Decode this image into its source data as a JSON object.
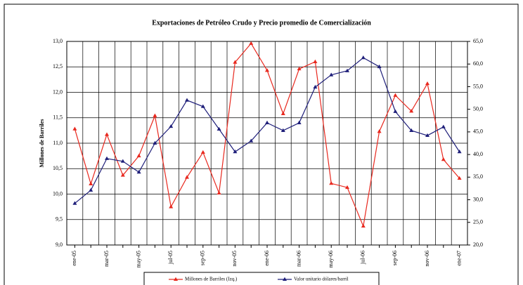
{
  "chart_data": {
    "type": "line",
    "title": "Exportaciones de Petróleo Crudo y Precio promedio de Comercialización",
    "y_label": "Millones de Barriles",
    "categories": [
      "ene-05",
      null,
      "mar-05",
      null,
      "may-05",
      null,
      "jul-05",
      null,
      "sep-05",
      null,
      "nov-05",
      null,
      "ene-06",
      null,
      "mar-06",
      null,
      "may-06",
      null,
      "jul-06",
      null,
      "sep-06",
      null,
      "nov-06",
      null,
      "ene-07"
    ],
    "series": [
      {
        "name": "Millones de Barriles (Izq.)",
        "color": "#e8281e",
        "values": [
          11.28,
          10.2,
          11.17,
          10.37,
          10.75,
          11.54,
          9.75,
          10.33,
          10.82,
          10.02,
          12.59,
          12.96,
          12.43,
          11.58,
          12.46,
          12.6,
          10.21,
          10.13,
          9.37,
          11.23,
          11.94,
          11.63,
          12.17,
          10.68,
          10.31
        ]
      },
      {
        "name": "Valor unitario dólares/barril",
        "color": "#1f1f7a",
        "axis": "y2",
        "values": [
          29.2,
          32.1,
          39.1,
          38.5,
          36.1,
          42.5,
          46.2,
          52.0,
          50.6,
          45.6,
          40.6,
          43.0,
          47.0,
          45.3,
          47.0,
          54.9,
          57.6,
          58.5,
          61.4,
          59.4,
          49.5,
          45.3,
          44.2,
          46.1,
          40.6
        ]
      }
    ],
    "ylim": [
      9,
      13
    ],
    "yticks": [
      {
        "value": 9,
        "label": "9,0"
      },
      {
        "value": 9.5,
        "label": "9,5"
      },
      {
        "value": 10,
        "label": "10,0"
      },
      {
        "value": 10.5,
        "label": "10,5"
      },
      {
        "value": 11,
        "label": "11,0"
      },
      {
        "value": 11.5,
        "label": "11,5"
      },
      {
        "value": 12,
        "label": "12,0"
      },
      {
        "value": 12.5,
        "label": "12,5"
      },
      {
        "value": 13,
        "label": "13,0"
      }
    ],
    "y2lim": [
      20,
      65
    ],
    "y2ticks": [
      {
        "value": 20,
        "label": "20,0"
      },
      {
        "value": 25,
        "label": "25,0"
      },
      {
        "value": 30,
        "label": "30,0"
      },
      {
        "value": 35,
        "label": "35,0"
      },
      {
        "value": 40,
        "label": "40,0"
      },
      {
        "value": 45,
        "label": "45,0"
      },
      {
        "value": 50,
        "label": "50,0"
      },
      {
        "value": 55,
        "label": "55,0"
      },
      {
        "value": 60,
        "label": "60,0"
      },
      {
        "value": 65,
        "label": "65,0"
      }
    ],
    "grid": true,
    "legend": "bottom"
  }
}
